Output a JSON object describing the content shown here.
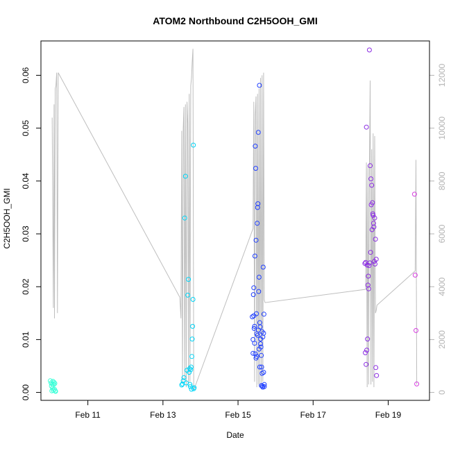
{
  "chart_data": {
    "type": "scatter",
    "title": "ATOM2 Northbound C2H5OOH_GMI",
    "xlabel": "Date",
    "ylabel": "C2H5OOH_GMI",
    "x_ticks": [
      "Feb 11",
      "Feb 13",
      "Feb 15",
      "Feb 17",
      "Feb 19"
    ],
    "x_tick_days": [
      11,
      13,
      15,
      17,
      19
    ],
    "xlim": [
      9.75,
      20.1
    ],
    "ylim": [
      -0.0015,
      0.0665
    ],
    "y_ticks": [
      0.0,
      0.01,
      0.02,
      0.03,
      0.04,
      0.05,
      0.06
    ],
    "y_tick_labels": [
      "0.00",
      "0.01",
      "0.02",
      "0.03",
      "0.04",
      "0.05",
      "0.06"
    ],
    "y2lim": [
      -300,
      13300
    ],
    "y2_ticks": [
      0,
      2000,
      4000,
      6000,
      8000,
      10000,
      12000
    ],
    "y2_tick_labels": [
      "0",
      "2000",
      "4000",
      "6000",
      "8000",
      "10000",
      "12000"
    ],
    "grid": false,
    "altitude_series": {
      "color": "#bebebe",
      "x": [
        10.05,
        10.08,
        10.1,
        10.11,
        10.13,
        10.15,
        10.17,
        10.19,
        10.21,
        13.45,
        13.48,
        13.5,
        13.52,
        13.54,
        13.56,
        13.58,
        13.6,
        13.62,
        13.64,
        13.66,
        13.68,
        13.7,
        13.72,
        13.74,
        13.76,
        13.78,
        13.8,
        13.82,
        13.85,
        15.4,
        15.42,
        15.44,
        15.46,
        15.48,
        15.5,
        15.52,
        15.54,
        15.56,
        15.58,
        15.6,
        15.62,
        15.64,
        15.66,
        15.68,
        15.7,
        15.72,
        18.4,
        18.42,
        18.44,
        18.46,
        18.48,
        18.5,
        18.52,
        18.54,
        18.56,
        18.58,
        18.6,
        18.62,
        18.64,
        18.66,
        18.68,
        18.7,
        19.72,
        19.74,
        19.76
      ],
      "y": [
        10400,
        3200,
        10900,
        2800,
        11500,
        11600,
        12100,
        3000,
        12100,
        3600,
        2800,
        9900,
        400,
        10000,
        10800,
        500,
        10900,
        200,
        11000,
        10200,
        300,
        11300,
        400,
        11600,
        11900,
        12500,
        13000,
        100,
        200,
        6200,
        11000,
        400,
        10500,
        11200,
        200,
        11300,
        300,
        11500,
        200,
        11900,
        300,
        12000,
        400,
        12100,
        3500,
        3400,
        3900,
        8700,
        200,
        8600,
        300,
        8500,
        11800,
        300,
        9200,
        400,
        9800,
        200,
        9700,
        3000,
        3100,
        3300,
        4600,
        8800,
        300
      ]
    },
    "series": [
      {
        "color": "#3dffd9",
        "x": [
          10.0,
          10.02,
          10.03,
          10.04,
          10.05,
          10.06,
          10.07,
          10.08,
          10.09,
          10.1,
          10.11,
          10.12,
          10.13,
          10.14
        ],
        "y": [
          0.0022,
          0.0018,
          0.0012,
          0.0003,
          0.0016,
          0.0008,
          0.0021,
          0.0004,
          0.0015,
          0.0019,
          0.0006,
          0.0017,
          0.0003,
          0.0002
        ]
      },
      {
        "color": "#00d5f7",
        "x": [
          13.5,
          13.52,
          13.54,
          13.56,
          13.58,
          13.6,
          13.62,
          13.64,
          13.66,
          13.68,
          13.7,
          13.71,
          13.72,
          13.73,
          13.74,
          13.75,
          13.76,
          13.77,
          13.78,
          13.79,
          13.8,
          13.81,
          13.82,
          13.83
        ],
        "y": [
          0.0014,
          0.0016,
          0.0022,
          0.0028,
          0.033,
          0.0409,
          0.0018,
          0.0042,
          0.0184,
          0.0214,
          0.0038,
          0.0045,
          0.0015,
          0.0011,
          0.0043,
          0.0048,
          0.0006,
          0.0068,
          0.0101,
          0.0125,
          0.0176,
          0.0468,
          0.0007,
          0.0009
        ]
      },
      {
        "color": "#1f3fff",
        "x": [
          15.38,
          15.4,
          15.41,
          15.42,
          15.43,
          15.44,
          15.45,
          15.46,
          15.47,
          15.48,
          15.49,
          15.5,
          15.51,
          15.52,
          15.53,
          15.54,
          15.55,
          15.56,
          15.57,
          15.58,
          15.59,
          15.6,
          15.61,
          15.62,
          15.63,
          15.64,
          15.65,
          15.66,
          15.67,
          15.68,
          15.69,
          15.7,
          15.4,
          15.44,
          15.48,
          15.52,
          15.56,
          15.6,
          15.64,
          15.68,
          15.42,
          15.46,
          15.5,
          15.54,
          15.58,
          15.62,
          15.66,
          15.7
        ],
        "y": [
          0.0143,
          0.0074,
          0.0185,
          0.0198,
          0.0121,
          0.0093,
          0.0258,
          0.0466,
          0.0424,
          0.0288,
          0.0149,
          0.0111,
          0.032,
          0.035,
          0.0357,
          0.0492,
          0.0191,
          0.0218,
          0.0581,
          0.0132,
          0.0124,
          0.0101,
          0.0086,
          0.007,
          0.0048,
          0.0036,
          0.0012,
          0.001,
          0.0237,
          0.0112,
          0.0148,
          0.0011,
          0.01,
          0.0125,
          0.0065,
          0.0108,
          0.0082,
          0.0092,
          0.0115,
          0.0038,
          0.0145,
          0.0073,
          0.0068,
          0.0118,
          0.0048,
          0.0013,
          0.0105,
          0.0015
        ]
      },
      {
        "color": "#8a2be2",
        "x": [
          18.38,
          18.4,
          18.42,
          18.44,
          18.46,
          18.48,
          18.5,
          18.52,
          18.54,
          18.56,
          18.58,
          18.6,
          18.62,
          18.64,
          18.66,
          18.68,
          18.39,
          18.41,
          18.43,
          18.45,
          18.47,
          18.49,
          18.51,
          18.53,
          18.55,
          18.57,
          18.59,
          18.61,
          18.63,
          18.65,
          18.67,
          18.69
        ],
        "y": [
          0.0244,
          0.0246,
          0.0502,
          0.0241,
          0.0203,
          0.0196,
          0.0648,
          0.0429,
          0.0404,
          0.0392,
          0.0359,
          0.0335,
          0.0313,
          0.033,
          0.029,
          0.0252,
          0.0075,
          0.0053,
          0.008,
          0.0101,
          0.022,
          0.024,
          0.0245,
          0.0265,
          0.0355,
          0.0308,
          0.0338,
          0.032,
          0.0248,
          0.0243,
          0.0047,
          0.0032
        ]
      },
      {
        "color": "#d63de0",
        "x": [
          19.7,
          19.72,
          19.74,
          19.76
        ],
        "y": [
          0.0375,
          0.0222,
          0.0117,
          0.0016
        ]
      }
    ]
  }
}
